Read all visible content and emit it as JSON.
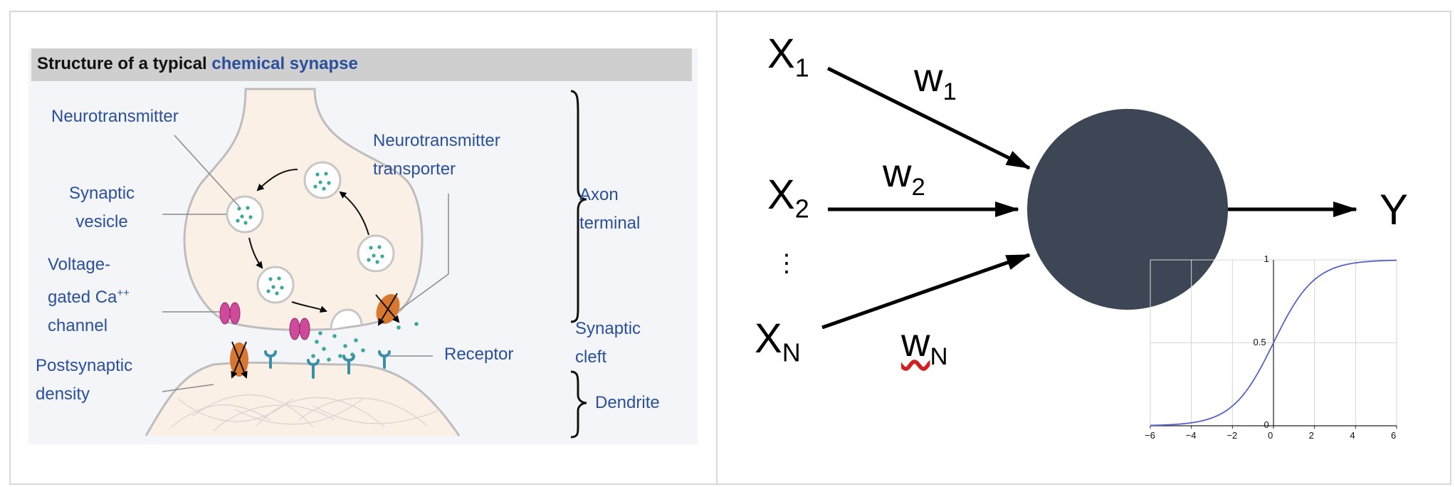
{
  "synapse": {
    "title_prefix": "Structure of a typical ",
    "title_link": "chemical synapse",
    "labels": {
      "neurotransmitter": "Neurotransmitter",
      "transporter": "Neurotransmitter\ntransporter",
      "vesicle": "Synaptic\nvesicle",
      "channel_1": "Voltage-\ngated Ca",
      "channel_sup": "++",
      "channel_2": "channel",
      "axon": "Axon\nterminal",
      "cleft": "Synaptic\ncleft",
      "receptor": "Receptor",
      "density": "Postsynaptic\ndensity",
      "dendrite": "Dendrite"
    },
    "colors": {
      "label": "#2a4f9c",
      "header_bg": "#cfcfcf",
      "cell_fill": "#fbf0e6",
      "vesicle_dots": "#3aa89a",
      "channel": "#cf4a9a",
      "transporter": "#d8772f",
      "receptor": "#3b8ea8"
    }
  },
  "neuron": {
    "inputs": [
      {
        "base": "X",
        "sub": "1"
      },
      {
        "base": "X",
        "sub": "2"
      },
      {
        "base": "X",
        "sub": "N"
      }
    ],
    "ellipsis": "⋮",
    "weights": [
      {
        "base": "w",
        "sub": "1"
      },
      {
        "base": "w",
        "sub": "2"
      },
      {
        "base": "w",
        "sub": "N"
      }
    ],
    "output": "Y",
    "node_color": "#3d4655"
  },
  "chart_data": {
    "type": "line",
    "function": "sigmoid",
    "title": "",
    "xlabel": "",
    "ylabel": "",
    "xlim": [
      -6,
      6
    ],
    "ylim": [
      0,
      1
    ],
    "x_ticks": [
      "−6",
      "−4",
      "−2",
      "0",
      "2",
      "4",
      "6"
    ],
    "y_ticks": [
      "0",
      "0.5",
      "1"
    ],
    "grid": true,
    "series": [
      {
        "color": "#5563c8",
        "x": [
          -6,
          -5,
          -4,
          -3,
          -2,
          -1,
          0,
          1,
          2,
          3,
          4,
          5,
          6
        ],
        "y": [
          0.002,
          0.007,
          0.018,
          0.047,
          0.119,
          0.269,
          0.5,
          0.731,
          0.881,
          0.953,
          0.982,
          0.993,
          0.998
        ]
      }
    ]
  }
}
